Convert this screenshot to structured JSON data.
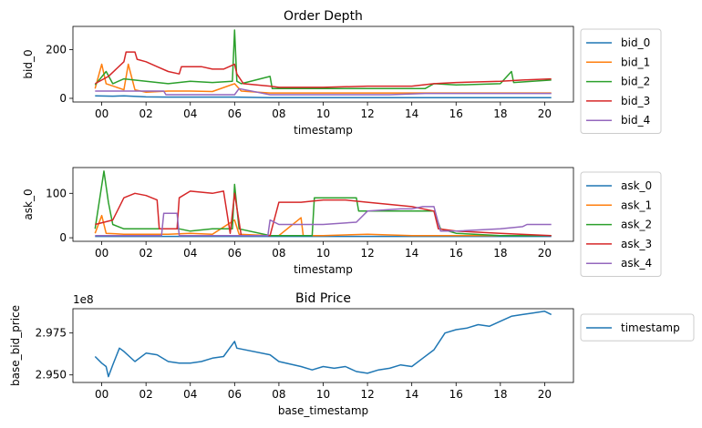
{
  "chart_data": [
    {
      "type": "line",
      "title": "Order Depth",
      "xlabel": "timestamp",
      "ylabel": "bid_0",
      "x_ticks": [
        "00",
        "02",
        "04",
        "06",
        "08",
        "10",
        "12",
        "14",
        "16",
        "18",
        "20"
      ],
      "x_range_hours": [
        -1.3,
        21.3
      ],
      "y_ticks": [
        0,
        200
      ],
      "ylim": [
        -15,
        295
      ],
      "legend_position": "outside-right",
      "series": [
        {
          "name": "bid_0",
          "color": "#1f77b4",
          "points": [
            [
              -0.3,
              10
            ],
            [
              0.5,
              9
            ],
            [
              1,
              10
            ],
            [
              2,
              6
            ],
            [
              3,
              5
            ],
            [
              4,
              5
            ],
            [
              5,
              5
            ],
            [
              6,
              5
            ],
            [
              7.6,
              3
            ],
            [
              9,
              3
            ],
            [
              11,
              3
            ],
            [
              13,
              3
            ],
            [
              15,
              3
            ],
            [
              17,
              3
            ],
            [
              19,
              3
            ],
            [
              20.3,
              3
            ]
          ]
        },
        {
          "name": "bid_1",
          "color": "#ff7f0e",
          "points": [
            [
              -0.3,
              40
            ],
            [
              0,
              140
            ],
            [
              0.2,
              60
            ],
            [
              1,
              35
            ],
            [
              1.2,
              140
            ],
            [
              1.5,
              35
            ],
            [
              2,
              25
            ],
            [
              3,
              30
            ],
            [
              4,
              30
            ],
            [
              5,
              28
            ],
            [
              6,
              60
            ],
            [
              6.3,
              30
            ],
            [
              7.6,
              22
            ],
            [
              9,
              22
            ],
            [
              11,
              22
            ],
            [
              13,
              22
            ],
            [
              15,
              22
            ],
            [
              16,
              22
            ],
            [
              18,
              22
            ],
            [
              20.3,
              22
            ]
          ]
        },
        {
          "name": "bid_2",
          "color": "#2ca02c",
          "points": [
            [
              -0.3,
              55
            ],
            [
              0.2,
              110
            ],
            [
              0.5,
              60
            ],
            [
              1,
              80
            ],
            [
              2,
              70
            ],
            [
              3,
              60
            ],
            [
              4,
              70
            ],
            [
              5,
              65
            ],
            [
              5.9,
              70
            ],
            [
              6.0,
              280
            ],
            [
              6.1,
              70
            ],
            [
              6.3,
              60
            ],
            [
              7.6,
              90
            ],
            [
              7.7,
              40
            ],
            [
              9,
              40
            ],
            [
              11,
              40
            ],
            [
              13,
              40
            ],
            [
              14.6,
              40
            ],
            [
              15,
              60
            ],
            [
              16,
              55
            ],
            [
              18,
              60
            ],
            [
              18.5,
              110
            ],
            [
              18.6,
              65
            ],
            [
              20.3,
              75
            ]
          ]
        },
        {
          "name": "bid_3",
          "color": "#d62728",
          "points": [
            [
              -0.3,
              60
            ],
            [
              0.3,
              90
            ],
            [
              1,
              150
            ],
            [
              1.1,
              190
            ],
            [
              1.5,
              190
            ],
            [
              1.6,
              160
            ],
            [
              2,
              150
            ],
            [
              2.5,
              130
            ],
            [
              3,
              110
            ],
            [
              3.5,
              100
            ],
            [
              3.6,
              130
            ],
            [
              4,
              130
            ],
            [
              4.5,
              130
            ],
            [
              5,
              120
            ],
            [
              5.5,
              120
            ],
            [
              6,
              140
            ],
            [
              6.1,
              100
            ],
            [
              6.4,
              60
            ],
            [
              7.6,
              50
            ],
            [
              8,
              45
            ],
            [
              10,
              45
            ],
            [
              12,
              50
            ],
            [
              14,
              50
            ],
            [
              15,
              60
            ],
            [
              16,
              65
            ],
            [
              18,
              70
            ],
            [
              19,
              75
            ],
            [
              20.3,
              80
            ]
          ]
        },
        {
          "name": "bid_4",
          "color": "#9467bd",
          "points": [
            [
              -0.3,
              30
            ],
            [
              1,
              30
            ],
            [
              2,
              30
            ],
            [
              2.8,
              30
            ],
            [
              2.9,
              15
            ],
            [
              3,
              15
            ],
            [
              5,
              15
            ],
            [
              6,
              15
            ],
            [
              6.2,
              40
            ],
            [
              7.6,
              15
            ],
            [
              9,
              15
            ],
            [
              11,
              15
            ],
            [
              13,
              15
            ],
            [
              14.6,
              20
            ],
            [
              15,
              20
            ],
            [
              16,
              20
            ],
            [
              18,
              20
            ],
            [
              20.3,
              20
            ]
          ]
        }
      ]
    },
    {
      "type": "line",
      "title": "",
      "xlabel": "timestamp",
      "ylabel": "ask_0",
      "x_ticks": [
        "00",
        "02",
        "04",
        "06",
        "08",
        "10",
        "12",
        "14",
        "16",
        "18",
        "20"
      ],
      "x_range_hours": [
        -1.3,
        21.3
      ],
      "y_ticks": [
        0,
        100
      ],
      "ylim": [
        -8,
        158
      ],
      "legend_position": "outside-right",
      "series": [
        {
          "name": "ask_0",
          "color": "#1f77b4",
          "points": [
            [
              -0.3,
              3
            ],
            [
              2,
              3
            ],
            [
              4,
              3
            ],
            [
              6,
              3
            ],
            [
              8,
              3
            ],
            [
              10,
              3
            ],
            [
              12,
              3
            ],
            [
              14,
              3
            ],
            [
              16,
              3
            ],
            [
              18,
              3
            ],
            [
              20.3,
              3
            ]
          ]
        },
        {
          "name": "ask_1",
          "color": "#ff7f0e",
          "points": [
            [
              -0.3,
              10
            ],
            [
              0,
              50
            ],
            [
              0.2,
              10
            ],
            [
              1,
              8
            ],
            [
              2,
              8
            ],
            [
              3,
              8
            ],
            [
              4,
              10
            ],
            [
              5,
              8
            ],
            [
              6,
              40
            ],
            [
              6.2,
              8
            ],
            [
              7.6,
              5
            ],
            [
              8,
              5
            ],
            [
              9,
              45
            ],
            [
              9.1,
              5
            ],
            [
              10,
              5
            ],
            [
              12,
              8
            ],
            [
              14,
              5
            ],
            [
              15,
              5
            ],
            [
              16,
              5
            ],
            [
              18,
              5
            ],
            [
              20.3,
              5
            ]
          ]
        },
        {
          "name": "ask_2",
          "color": "#2ca02c",
          "points": [
            [
              -0.3,
              20
            ],
            [
              0.1,
              150
            ],
            [
              0.3,
              80
            ],
            [
              0.5,
              30
            ],
            [
              1,
              20
            ],
            [
              2,
              20
            ],
            [
              3,
              20
            ],
            [
              3.5,
              20
            ],
            [
              4,
              15
            ],
            [
              5,
              20
            ],
            [
              5.9,
              20
            ],
            [
              6.0,
              120
            ],
            [
              6.2,
              20
            ],
            [
              7.6,
              5
            ],
            [
              8,
              5
            ],
            [
              9.5,
              5
            ],
            [
              9.6,
              90
            ],
            [
              11.5,
              90
            ],
            [
              11.6,
              60
            ],
            [
              13,
              60
            ],
            [
              14,
              60
            ],
            [
              15,
              60
            ],
            [
              15.3,
              20
            ],
            [
              16,
              10
            ],
            [
              18,
              5
            ],
            [
              20.3,
              5
            ]
          ]
        },
        {
          "name": "ask_3",
          "color": "#d62728",
          "points": [
            [
              -0.3,
              30
            ],
            [
              0.5,
              40
            ],
            [
              1,
              90
            ],
            [
              1.5,
              100
            ],
            [
              2,
              95
            ],
            [
              2.5,
              85
            ],
            [
              2.6,
              20
            ],
            [
              3,
              20
            ],
            [
              3.4,
              20
            ],
            [
              3.5,
              90
            ],
            [
              4,
              105
            ],
            [
              5,
              100
            ],
            [
              5.5,
              105
            ],
            [
              5.8,
              10
            ],
            [
              6,
              100
            ],
            [
              6.3,
              5
            ],
            [
              7.6,
              5
            ],
            [
              8,
              80
            ],
            [
              9,
              80
            ],
            [
              10,
              85
            ],
            [
              11,
              85
            ],
            [
              12,
              80
            ],
            [
              13,
              75
            ],
            [
              14,
              70
            ],
            [
              15,
              60
            ],
            [
              15.2,
              20
            ],
            [
              16,
              15
            ],
            [
              18,
              10
            ],
            [
              20.3,
              5
            ]
          ]
        },
        {
          "name": "ask_4",
          "color": "#9467bd",
          "points": [
            [
              -0.3,
              5
            ],
            [
              1,
              5
            ],
            [
              2,
              5
            ],
            [
              2.7,
              5
            ],
            [
              2.8,
              55
            ],
            [
              3.4,
              55
            ],
            [
              3.5,
              5
            ],
            [
              5,
              5
            ],
            [
              6,
              5
            ],
            [
              7.5,
              5
            ],
            [
              7.6,
              40
            ],
            [
              8,
              30
            ],
            [
              10,
              30
            ],
            [
              11.5,
              35
            ],
            [
              12,
              60
            ],
            [
              13.5,
              65
            ],
            [
              14,
              65
            ],
            [
              14.5,
              70
            ],
            [
              15,
              70
            ],
            [
              15.3,
              15
            ],
            [
              16,
              15
            ],
            [
              18,
              20
            ],
            [
              19,
              25
            ],
            [
              19.2,
              30
            ],
            [
              20.3,
              30
            ]
          ]
        }
      ]
    },
    {
      "type": "line",
      "title": "Bid Price",
      "xlabel": "base_timestamp",
      "ylabel": "base_bid_price",
      "y_offset_label": "1e8",
      "x_ticks": [
        "00",
        "02",
        "04",
        "06",
        "08",
        "10",
        "12",
        "14",
        "16",
        "18",
        "20"
      ],
      "x_range_hours": [
        -1.3,
        21.3
      ],
      "y_ticks": [
        "2.950",
        "2.975"
      ],
      "y_tick_values": [
        2.95,
        2.975
      ],
      "ylim": [
        2.9455,
        2.9895
      ],
      "legend_position": "outside-right",
      "series": [
        {
          "name": "timestamp",
          "color": "#1f77b4",
          "points": [
            [
              -0.3,
              2.961
            ],
            [
              0,
              2.957
            ],
            [
              0.2,
              2.955
            ],
            [
              0.3,
              2.949
            ],
            [
              0.5,
              2.956
            ],
            [
              0.8,
              2.966
            ],
            [
              1,
              2.964
            ],
            [
              1.5,
              2.958
            ],
            [
              2,
              2.963
            ],
            [
              2.5,
              2.962
            ],
            [
              3,
              2.958
            ],
            [
              3.5,
              2.957
            ],
            [
              4,
              2.957
            ],
            [
              4.5,
              2.958
            ],
            [
              5,
              2.96
            ],
            [
              5.5,
              2.961
            ],
            [
              6,
              2.97
            ],
            [
              6.1,
              2.966
            ],
            [
              7.6,
              2.962
            ],
            [
              8,
              2.958
            ],
            [
              9,
              2.955
            ],
            [
              9.5,
              2.953
            ],
            [
              10,
              2.955
            ],
            [
              10.5,
              2.954
            ],
            [
              11,
              2.955
            ],
            [
              11.5,
              2.952
            ],
            [
              12,
              2.951
            ],
            [
              12.5,
              2.953
            ],
            [
              13,
              2.954
            ],
            [
              13.5,
              2.956
            ],
            [
              14,
              2.955
            ],
            [
              14.5,
              2.96
            ],
            [
              15,
              2.965
            ],
            [
              15.5,
              2.975
            ],
            [
              16,
              2.977
            ],
            [
              16.5,
              2.978
            ],
            [
              17,
              2.98
            ],
            [
              17.5,
              2.979
            ],
            [
              18,
              2.982
            ],
            [
              18.5,
              2.985
            ],
            [
              19,
              2.986
            ],
            [
              19.5,
              2.987
            ],
            [
              20,
              2.988
            ],
            [
              20.3,
              2.986
            ]
          ]
        }
      ]
    }
  ]
}
